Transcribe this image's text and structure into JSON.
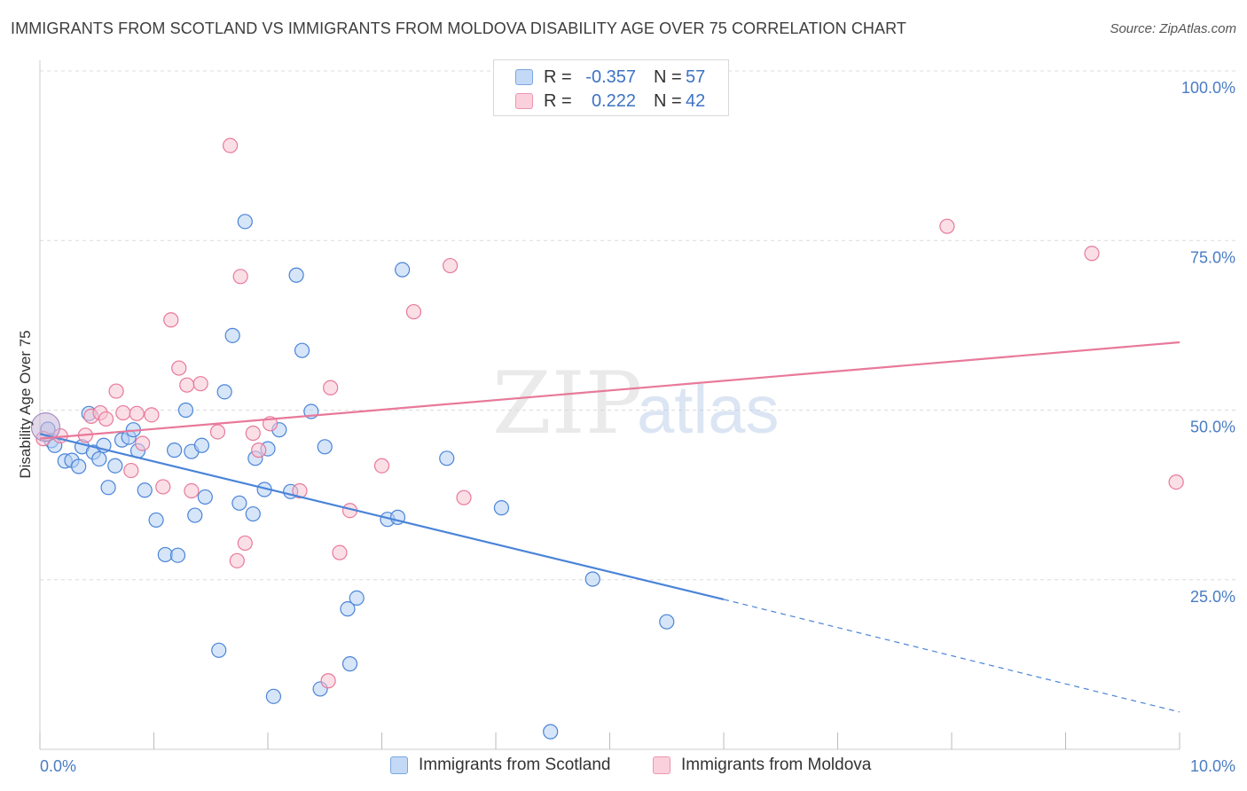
{
  "header": {
    "title": "IMMIGRANTS FROM SCOTLAND VS IMMIGRANTS FROM MOLDOVA DISABILITY AGE OVER 75 CORRELATION CHART",
    "source": "Source: ZipAtlas.com"
  },
  "watermark": {
    "zip": "ZIP",
    "atlas": "atlas"
  },
  "legend": {
    "rows": [
      {
        "r_label": "R =",
        "r_value": "-0.357",
        "n_label": "N =",
        "n_value": "57",
        "color": "#a9c8f0"
      },
      {
        "r_label": "R =",
        "r_value": "0.222",
        "n_label": "N =",
        "n_value": "42",
        "color": "#f5b8cb"
      }
    ]
  },
  "chart_data": {
    "type": "scatter",
    "title": "IMMIGRANTS FROM SCOTLAND VS IMMIGRANTS FROM MOLDOVA DISABILITY AGE OVER 75 CORRELATION CHART",
    "xlabel": "",
    "ylabel": "Disability Age Over 75",
    "xlim": [
      0,
      10
    ],
    "ylim": [
      0,
      100
    ],
    "x_tick_labels": [
      "0.0%",
      "10.0%"
    ],
    "y_ticks": [
      25,
      50,
      75,
      100
    ],
    "y_tick_labels": [
      "25.0%",
      "50.0%",
      "75.0%",
      "100.0%"
    ],
    "grid": true,
    "legend_position": "top-center",
    "series": [
      {
        "name": "Immigrants from Scotland",
        "color": "#4a84d8",
        "fill": "#b5d0f3",
        "points": [
          [
            0.07,
            47.2
          ],
          [
            0.1,
            45.5
          ],
          [
            0.13,
            44.8
          ],
          [
            0.22,
            42.5
          ],
          [
            0.28,
            42.6
          ],
          [
            0.34,
            41.7
          ],
          [
            0.37,
            44.6
          ],
          [
            0.43,
            49.5
          ],
          [
            0.47,
            43.8
          ],
          [
            0.52,
            42.8
          ],
          [
            0.56,
            44.8
          ],
          [
            0.6,
            38.6
          ],
          [
            0.66,
            41.8
          ],
          [
            0.72,
            45.6
          ],
          [
            0.78,
            46
          ],
          [
            0.82,
            47.1
          ],
          [
            0.86,
            44
          ],
          [
            0.92,
            38.2
          ],
          [
            1.02,
            33.8
          ],
          [
            1.1,
            28.7
          ],
          [
            1.21,
            28.6
          ],
          [
            1.18,
            44.1
          ],
          [
            1.28,
            50
          ],
          [
            1.33,
            43.9
          ],
          [
            1.36,
            34.5
          ],
          [
            1.42,
            44.8
          ],
          [
            1.45,
            37.2
          ],
          [
            1.57,
            14.6
          ],
          [
            1.62,
            52.7
          ],
          [
            1.69,
            61
          ],
          [
            1.75,
            36.3
          ],
          [
            1.8,
            77.8
          ],
          [
            1.87,
            34.7
          ],
          [
            1.89,
            42.9
          ],
          [
            1.97,
            38.3
          ],
          [
            2.0,
            44.3
          ],
          [
            2.05,
            7.8
          ],
          [
            2.1,
            47.1
          ],
          [
            2.2,
            38
          ],
          [
            2.25,
            69.9
          ],
          [
            2.3,
            58.8
          ],
          [
            2.38,
            49.8
          ],
          [
            2.46,
            8.9
          ],
          [
            2.5,
            44.6
          ],
          [
            2.7,
            20.7
          ],
          [
            2.72,
            12.6
          ],
          [
            2.78,
            22.3
          ],
          [
            3.05,
            33.9
          ],
          [
            3.14,
            34.2
          ],
          [
            3.18,
            70.7
          ],
          [
            3.57,
            42.9
          ],
          [
            4.05,
            35.6
          ],
          [
            4.48,
            2.6
          ],
          [
            4.85,
            25.1
          ],
          [
            5.5,
            18.8
          ]
        ]
      },
      {
        "name": "Immigrants from Moldova",
        "color": "#e8799a",
        "fill": "#f8c5d4",
        "points": [
          [
            0.03,
            45.8
          ],
          [
            0.18,
            46.2
          ],
          [
            0.4,
            46.3
          ],
          [
            0.45,
            49.1
          ],
          [
            0.53,
            49.6
          ],
          [
            0.58,
            48.7
          ],
          [
            0.67,
            52.8
          ],
          [
            0.73,
            49.6
          ],
          [
            0.8,
            41.1
          ],
          [
            0.85,
            49.5
          ],
          [
            0.9,
            45.1
          ],
          [
            0.98,
            49.3
          ],
          [
            1.08,
            38.7
          ],
          [
            1.15,
            63.3
          ],
          [
            1.22,
            56.2
          ],
          [
            1.29,
            53.7
          ],
          [
            1.33,
            38.1
          ],
          [
            1.41,
            53.9
          ],
          [
            1.56,
            46.8
          ],
          [
            1.67,
            89
          ],
          [
            1.73,
            27.8
          ],
          [
            1.76,
            69.7
          ],
          [
            1.8,
            30.4
          ],
          [
            1.87,
            46.6
          ],
          [
            1.92,
            44.1
          ],
          [
            2.02,
            48
          ],
          [
            2.28,
            38.1
          ],
          [
            2.53,
            10.1
          ],
          [
            2.55,
            53.3
          ],
          [
            2.63,
            29
          ],
          [
            2.72,
            35.2
          ],
          [
            3.0,
            41.8
          ],
          [
            3.28,
            64.5
          ],
          [
            3.6,
            71.3
          ],
          [
            3.72,
            37.1
          ],
          [
            7.96,
            77.1
          ],
          [
            9.23,
            73.1
          ],
          [
            9.97,
            39.4
          ]
        ]
      }
    ],
    "trendlines": [
      {
        "series": "Immigrants from Scotland",
        "x0": 0,
        "y0": 46.5,
        "x1": 6.0,
        "y1": 22.1,
        "dashed_to": [
          10,
          5.5
        ]
      },
      {
        "series": "Immigrants from Moldova",
        "x0": 0,
        "y0": 45.8,
        "x1": 10,
        "y1": 60.0
      }
    ]
  },
  "bottom_legend": {
    "items": [
      {
        "label": "Immigrants from Scotland",
        "color": "#a9c8f0"
      },
      {
        "label": "Immigrants from Moldova",
        "color": "#f5b8cb"
      }
    ]
  }
}
